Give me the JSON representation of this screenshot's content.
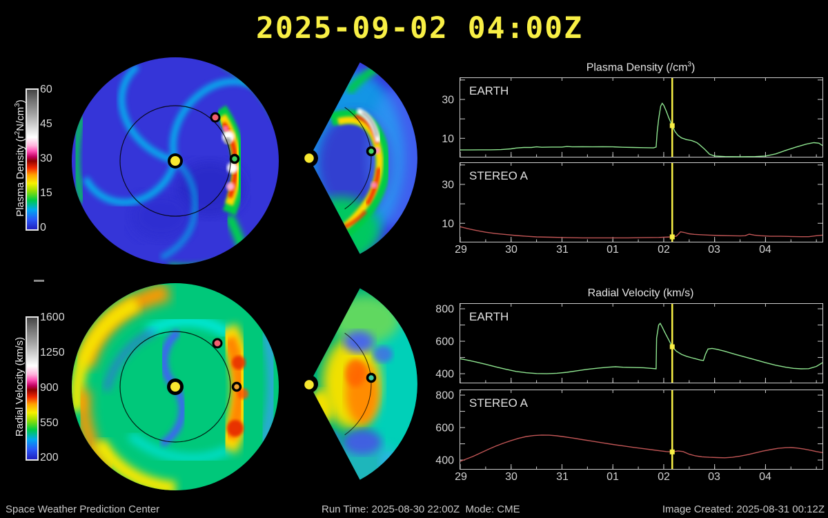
{
  "header": {
    "title": "2025-09-02 04:00Z"
  },
  "colorbars": {
    "density": {
      "label_parts": [
        "Plasma Density (r",
        "2",
        "N/cm",
        "3",
        ")"
      ],
      "ticks": [
        "60",
        "45",
        "30",
        "15",
        "0"
      ]
    },
    "velocity": {
      "label": "Radial Velocity (km/s)",
      "ticks": [
        "1600",
        "1250",
        "900",
        "550",
        "200"
      ]
    }
  },
  "maps": {
    "sun_color": "#f8e830",
    "earth_marker_color": "#3fd060",
    "stereo_a_marker_color": "#f06070"
  },
  "chart_data": [
    {
      "type": "line",
      "title_parts": [
        "Plasma Density (/cm",
        "3",
        ")"
      ],
      "xlim": [
        0,
        7.12
      ],
      "ylim": [
        0.5,
        41
      ],
      "xticks": [
        0,
        1,
        2,
        3,
        4,
        5,
        6
      ],
      "xtick_labels": [
        "29",
        "30",
        "31",
        "01",
        "02",
        "03",
        "04"
      ],
      "yticks": [
        10,
        20,
        30,
        40
      ],
      "labeled_yticks": [
        10,
        30
      ],
      "marker_day": 4.167,
      "marker_color": "#f8ef45",
      "panels": [
        {
          "label": "EARTH",
          "color": "#8fe690",
          "marker_value": 16.5,
          "points": [
            [
              0,
              4.0
            ],
            [
              0.2,
              4.0
            ],
            [
              0.4,
              4.1
            ],
            [
              0.6,
              4.1
            ],
            [
              0.8,
              4.2
            ],
            [
              1.0,
              4.6
            ],
            [
              1.1,
              5.0
            ],
            [
              1.25,
              5.3
            ],
            [
              1.4,
              5.3
            ],
            [
              1.5,
              5.6
            ],
            [
              1.6,
              5.4
            ],
            [
              1.8,
              5.5
            ],
            [
              2.0,
              5.5
            ],
            [
              2.1,
              5.8
            ],
            [
              2.2,
              5.6
            ],
            [
              2.4,
              5.7
            ],
            [
              2.6,
              5.6
            ],
            [
              2.8,
              5.7
            ],
            [
              3.0,
              5.6
            ],
            [
              3.2,
              5.4
            ],
            [
              3.4,
              5.3
            ],
            [
              3.6,
              5.2
            ],
            [
              3.8,
              5.1
            ],
            [
              3.85,
              5.5
            ],
            [
              3.87,
              13
            ],
            [
              3.9,
              20
            ],
            [
              3.94,
              26.5
            ],
            [
              3.97,
              28
            ],
            [
              4.0,
              27
            ],
            [
              4.05,
              24
            ],
            [
              4.1,
              20.5
            ],
            [
              4.167,
              16.5
            ],
            [
              4.22,
              13.5
            ],
            [
              4.28,
              11.5
            ],
            [
              4.35,
              10.2
            ],
            [
              4.45,
              9.3
            ],
            [
              4.55,
              8.8
            ],
            [
              4.65,
              7.8
            ],
            [
              4.7,
              6.8
            ],
            [
              4.8,
              4.5
            ],
            [
              4.9,
              1.8
            ],
            [
              5.0,
              0.9
            ],
            [
              5.2,
              0.6
            ],
            [
              5.5,
              0.5
            ],
            [
              5.8,
              0.6
            ],
            [
              6.0,
              0.9
            ],
            [
              6.2,
              2.0
            ],
            [
              6.4,
              3.8
            ],
            [
              6.6,
              5.5
            ],
            [
              6.8,
              7.0
            ],
            [
              6.95,
              7.8
            ],
            [
              7.05,
              7.5
            ],
            [
              7.12,
              6.3
            ]
          ]
        },
        {
          "label": "STEREO A",
          "color": "#c05555",
          "marker_value": 3.0,
          "points": [
            [
              0,
              8.2
            ],
            [
              0.15,
              7.2
            ],
            [
              0.3,
              6.4
            ],
            [
              0.5,
              5.4
            ],
            [
              0.7,
              4.7
            ],
            [
              0.9,
              4.2
            ],
            [
              1.1,
              3.7
            ],
            [
              1.3,
              3.3
            ],
            [
              1.5,
              3.0
            ],
            [
              1.8,
              2.8
            ],
            [
              2.1,
              2.6
            ],
            [
              2.4,
              2.5
            ],
            [
              2.7,
              2.5
            ],
            [
              3.0,
              2.5
            ],
            [
              3.3,
              2.5
            ],
            [
              3.6,
              2.6
            ],
            [
              3.9,
              2.7
            ],
            [
              4.0,
              2.8
            ],
            [
              4.167,
              3.0
            ],
            [
              4.25,
              3.4
            ],
            [
              4.33,
              5.6
            ],
            [
              4.4,
              5.3
            ],
            [
              4.5,
              4.6
            ],
            [
              4.6,
              4.3
            ],
            [
              4.75,
              4.1
            ],
            [
              4.9,
              3.9
            ],
            [
              5.1,
              3.7
            ],
            [
              5.3,
              3.6
            ],
            [
              5.5,
              3.5
            ],
            [
              5.6,
              3.6
            ],
            [
              5.68,
              4.4
            ],
            [
              5.78,
              3.9
            ],
            [
              5.9,
              3.6
            ],
            [
              6.1,
              3.3
            ],
            [
              6.3,
              3.3
            ],
            [
              6.5,
              3.2
            ],
            [
              6.7,
              3.1
            ],
            [
              6.85,
              3.1
            ],
            [
              7.0,
              3.6
            ],
            [
              7.12,
              3.9
            ]
          ]
        }
      ]
    },
    {
      "type": "line",
      "title": "Radial Velocity (km/s)",
      "xlim": [
        0,
        7.12
      ],
      "ylim": [
        345,
        830
      ],
      "xticks": [
        0,
        1,
        2,
        3,
        4,
        5,
        6
      ],
      "xtick_labels": [
        "29",
        "30",
        "31",
        "01",
        "02",
        "03",
        "04"
      ],
      "yticks": [
        400,
        500,
        600,
        700,
        800
      ],
      "labeled_yticks": [
        400,
        600,
        800
      ],
      "marker_day": 4.167,
      "marker_color": "#f8ef45",
      "panels": [
        {
          "label": "EARTH",
          "color": "#8fe690",
          "marker_value": 566,
          "points": [
            [
              0,
              492
            ],
            [
              0.15,
              483
            ],
            [
              0.3,
              473
            ],
            [
              0.5,
              458
            ],
            [
              0.7,
              442
            ],
            [
              0.9,
              427
            ],
            [
              1.1,
              414
            ],
            [
              1.3,
              406
            ],
            [
              1.5,
              401
            ],
            [
              1.7,
              400
            ],
            [
              1.9,
              403
            ],
            [
              2.1,
              409
            ],
            [
              2.3,
              418
            ],
            [
              2.5,
              427
            ],
            [
              2.7,
              434
            ],
            [
              2.9,
              440
            ],
            [
              3.05,
              443
            ],
            [
              3.2,
              440
            ],
            [
              3.4,
              438
            ],
            [
              3.6,
              437
            ],
            [
              3.75,
              433
            ],
            [
              3.85,
              430
            ],
            [
              3.86,
              620
            ],
            [
              3.9,
              700
            ],
            [
              3.93,
              710
            ],
            [
              3.97,
              688
            ],
            [
              4.02,
              655
            ],
            [
              4.08,
              620
            ],
            [
              4.12,
              595
            ],
            [
              4.167,
              566
            ],
            [
              4.25,
              538
            ],
            [
              4.35,
              519
            ],
            [
              4.45,
              507
            ],
            [
              4.55,
              498
            ],
            [
              4.65,
              490
            ],
            [
              4.72,
              484
            ],
            [
              4.78,
              481
            ],
            [
              4.82,
              520
            ],
            [
              4.87,
              552
            ],
            [
              4.95,
              556
            ],
            [
              5.05,
              550
            ],
            [
              5.2,
              538
            ],
            [
              5.4,
              520
            ],
            [
              5.6,
              503
            ],
            [
              5.8,
              486
            ],
            [
              6.0,
              468
            ],
            [
              6.2,
              452
            ],
            [
              6.4,
              440
            ],
            [
              6.55,
              433
            ],
            [
              6.7,
              430
            ],
            [
              6.85,
              431
            ],
            [
              7.0,
              445
            ],
            [
              7.12,
              468
            ]
          ]
        },
        {
          "label": "STEREO A",
          "color": "#c05555",
          "marker_value": 450,
          "points": [
            [
              0,
              392
            ],
            [
              0.1,
              404
            ],
            [
              0.25,
              422
            ],
            [
              0.4,
              444
            ],
            [
              0.55,
              466
            ],
            [
              0.7,
              486
            ],
            [
              0.85,
              504
            ],
            [
              1.0,
              520
            ],
            [
              1.15,
              534
            ],
            [
              1.3,
              545
            ],
            [
              1.45,
              551
            ],
            [
              1.6,
              554
            ],
            [
              1.75,
              553
            ],
            [
              1.9,
              549
            ],
            [
              2.05,
              543
            ],
            [
              2.2,
              536
            ],
            [
              2.4,
              526
            ],
            [
              2.6,
              516
            ],
            [
              2.8,
              506
            ],
            [
              3.0,
              496
            ],
            [
              3.2,
              487
            ],
            [
              3.4,
              478
            ],
            [
              3.6,
              470
            ],
            [
              3.8,
              462
            ],
            [
              3.95,
              456
            ],
            [
              4.05,
              452
            ],
            [
              4.167,
              450
            ],
            [
              4.28,
              456
            ],
            [
              4.38,
              452
            ],
            [
              4.5,
              436
            ],
            [
              4.62,
              426
            ],
            [
              4.75,
              420
            ],
            [
              4.9,
              417
            ],
            [
              5.05,
              415
            ],
            [
              5.2,
              414
            ],
            [
              5.35,
              417
            ],
            [
              5.5,
              424
            ],
            [
              5.65,
              433
            ],
            [
              5.8,
              444
            ],
            [
              5.95,
              455
            ],
            [
              6.1,
              464
            ],
            [
              6.25,
              472
            ],
            [
              6.4,
              476
            ],
            [
              6.5,
              477
            ],
            [
              6.62,
              474
            ],
            [
              6.75,
              468
            ],
            [
              6.9,
              459
            ],
            [
              7.0,
              452
            ],
            [
              7.12,
              446
            ]
          ]
        }
      ]
    }
  ],
  "footer": {
    "left": "Space Weather Prediction Center",
    "center": "Run Time: 2025-08-30 22:00Z  Mode: CME",
    "right": "Image Created: 2025-08-31 00:12Z"
  }
}
